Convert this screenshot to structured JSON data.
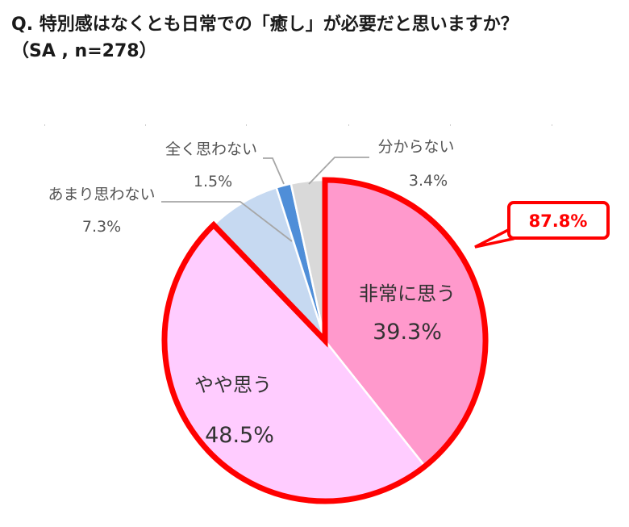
{
  "title": {
    "line1": "Q. 特別感はなくとも日常での「癒し」が必要だと思いますか？",
    "line2": "（SA , n=278）"
  },
  "chart_data": {
    "type": "pie",
    "categories": [
      "非常に思う",
      "やや思う",
      "あまり思わない",
      "全く思わない",
      "分からない"
    ],
    "values": [
      39.3,
      48.5,
      7.3,
      1.5,
      3.4
    ],
    "labels": [
      "39.3%",
      "48.5%",
      "7.3%",
      "1.5%",
      "3.4%"
    ],
    "colors": [
      "#ff99cc",
      "#ffccff",
      "#c6d9f1",
      "#4f8ed8",
      "#d9d9d9"
    ],
    "highlight": {
      "text": "87.8%",
      "color": "#ff0000"
    }
  }
}
